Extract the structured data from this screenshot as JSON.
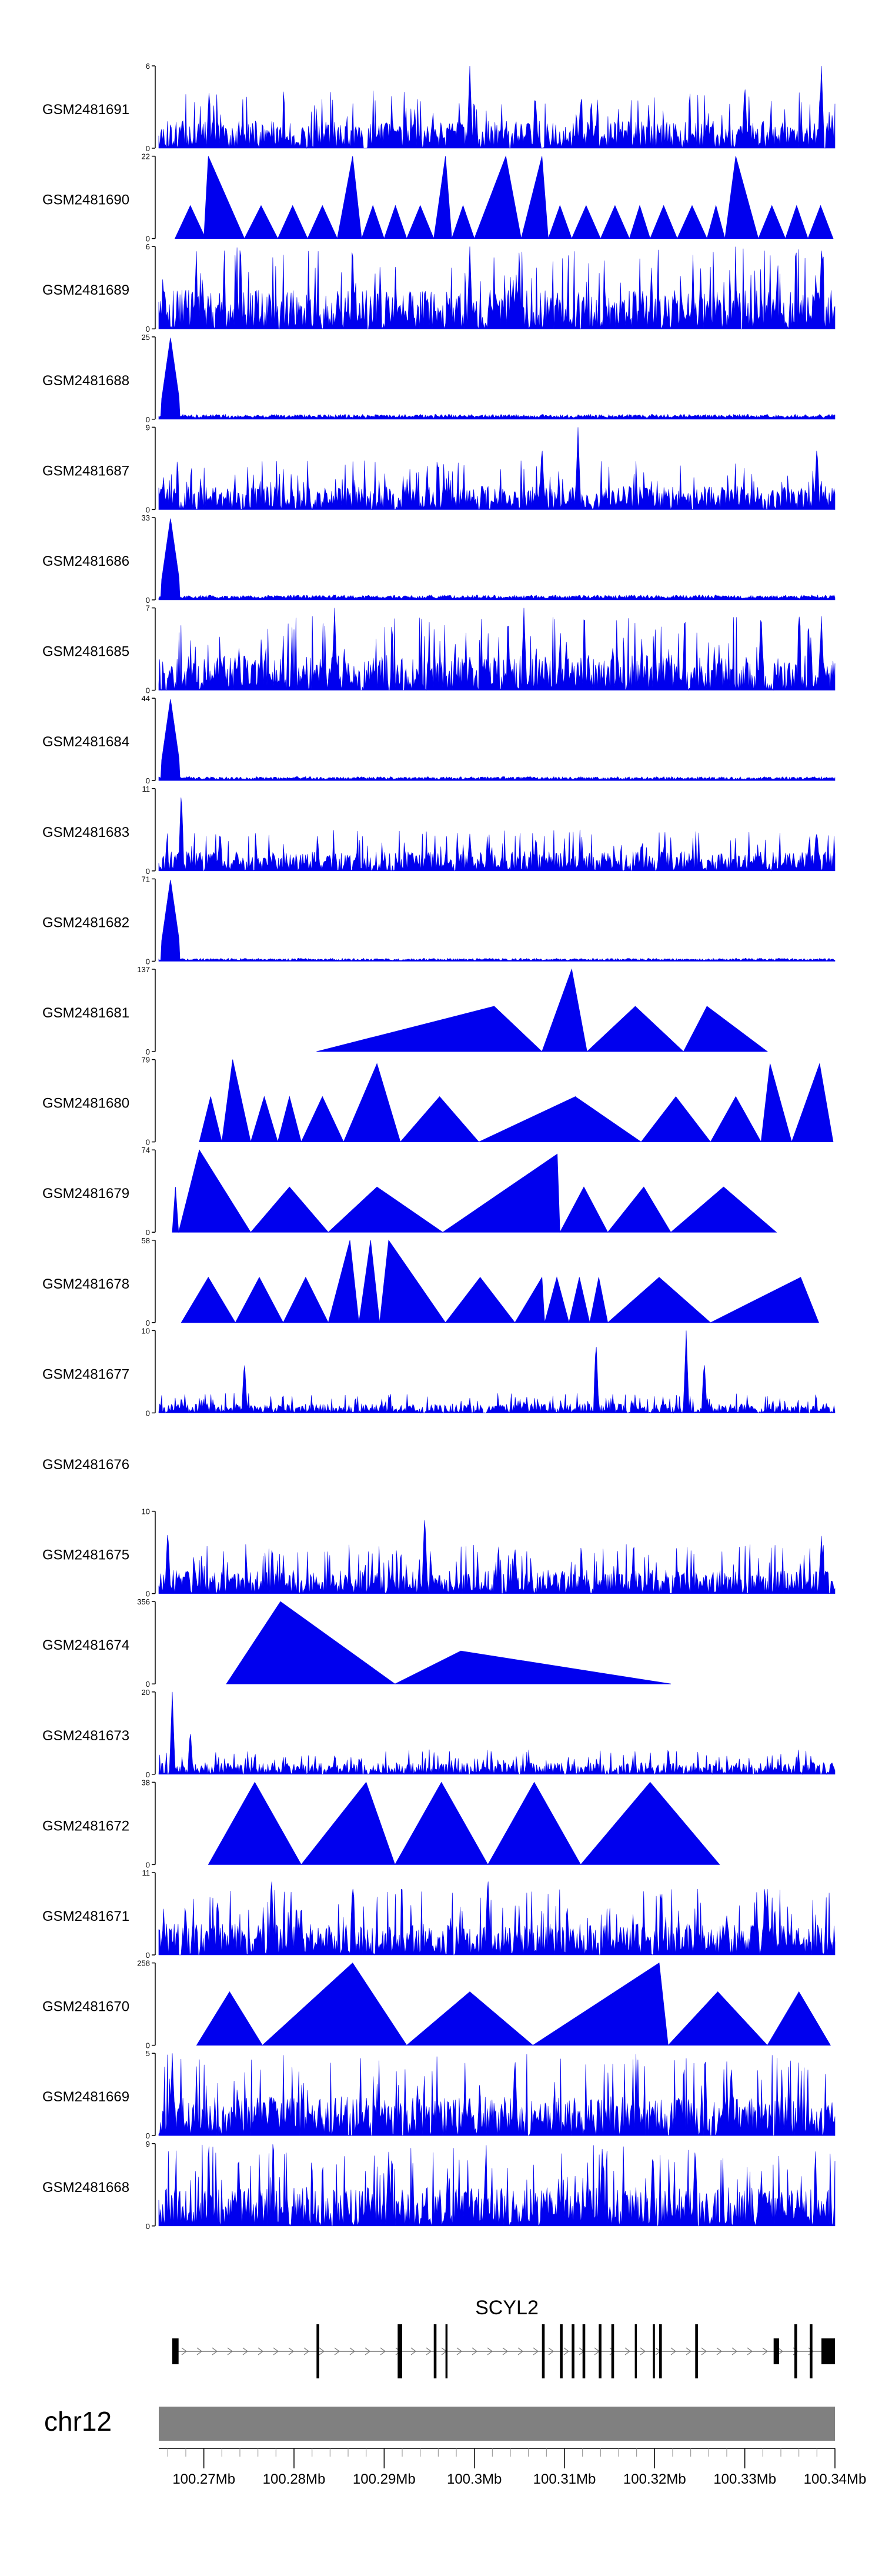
{
  "colors": {
    "fill": "#0000ee",
    "axis": "#000000",
    "gene": "#000000",
    "chrom": "#808080"
  },
  "chart_data": {
    "type": "area",
    "title": "",
    "xlabel": "",
    "ylabel": "",
    "xlim_mb": [
      100.265,
      100.34
    ],
    "tracks": [
      {
        "name": "GSM2481691",
        "ymax_label": "6",
        "ymin_label": "0",
        "style": "dense",
        "level": 0.35,
        "peaks": [
          [
            100.2995,
            1.0
          ],
          [
            100.33,
            0.8
          ],
          [
            100.3385,
            1.0
          ],
          [
            100.3118,
            0.6
          ]
        ],
        "empty": false
      },
      {
        "name": "GSM2481690",
        "ymax_label": "22",
        "ymin_label": "0",
        "style": "tri",
        "level": 0.4,
        "peaks": [
          [
            100.2705,
            1.0
          ],
          [
            100.2865,
            1.0
          ],
          [
            100.3035,
            1.0
          ],
          [
            100.329,
            1.0
          ],
          [
            100.2968,
            1.0
          ],
          [
            100.3075,
            1.0
          ]
        ],
        "empty": false
      },
      {
        "name": "GSM2481689",
        "ymax_label": "6",
        "ymin_label": "0",
        "style": "dense",
        "level": 0.5,
        "peaks": [
          [
            100.2995,
            1.0
          ],
          [
            100.3385,
            0.95
          ]
        ],
        "empty": false
      },
      {
        "name": "GSM2481688",
        "ymax_label": "25",
        "ymin_label": "0",
        "style": "edge",
        "level": 0.05,
        "peaks": [
          [
            100.2663,
            1.0
          ]
        ],
        "empty": false
      },
      {
        "name": "GSM2481687",
        "ymax_label": "9",
        "ymin_label": "0",
        "style": "dense",
        "level": 0.3,
        "peaks": [
          [
            100.3115,
            1.0
          ],
          [
            100.338,
            0.8
          ],
          [
            100.3075,
            0.8
          ]
        ],
        "empty": false
      },
      {
        "name": "GSM2481686",
        "ymax_label": "33",
        "ymin_label": "0",
        "style": "edge",
        "level": 0.05,
        "peaks": [
          [
            100.2663,
            1.0
          ]
        ],
        "empty": false
      },
      {
        "name": "GSM2481685",
        "ymax_label": "7",
        "ymin_label": "0",
        "style": "dense",
        "level": 0.45,
        "peaks": [
          [
            100.2845,
            1.0
          ],
          [
            100.3055,
            1.0
          ],
          [
            100.3318,
            1.0
          ],
          [
            100.3385,
            0.9
          ]
        ],
        "empty": false
      },
      {
        "name": "GSM2481684",
        "ymax_label": "44",
        "ymin_label": "0",
        "style": "edge",
        "level": 0.04,
        "peaks": [
          [
            100.2663,
            1.0
          ]
        ],
        "empty": false
      },
      {
        "name": "GSM2481683",
        "ymax_label": "11",
        "ymin_label": "0",
        "style": "dense",
        "level": 0.25,
        "peaks": [
          [
            100.2675,
            1.0
          ],
          [
            100.2718,
            0.5
          ],
          [
            100.2995,
            0.45
          ],
          [
            100.338,
            0.5
          ]
        ],
        "empty": false
      },
      {
        "name": "GSM2481682",
        "ymax_label": "71",
        "ymin_label": "0",
        "style": "edge",
        "level": 0.03,
        "peaks": [
          [
            100.2663,
            1.0
          ]
        ],
        "empty": false
      },
      {
        "name": "GSM2481681",
        "ymax_label": "137",
        "ymin_label": "0",
        "style": "tri",
        "level": 0.55,
        "peaks": [
          [
            100.3108,
            1.0
          ],
          [
            100.3258,
            0.45
          ],
          [
            100.3022,
            0.5
          ]
        ],
        "empty": false
      },
      {
        "name": "GSM2481680",
        "ymax_label": "79",
        "ymin_label": "0",
        "style": "tri",
        "level": 0.55,
        "peaks": [
          [
            100.2732,
            1.0
          ],
          [
            100.2892,
            0.95
          ],
          [
            100.3328,
            0.95
          ],
          [
            100.3383,
            0.95
          ],
          [
            100.3112,
            0.45
          ]
        ],
        "empty": false
      },
      {
        "name": "GSM2481679",
        "ymax_label": "74",
        "ymin_label": "0",
        "style": "tri",
        "level": 0.55,
        "peaks": [
          [
            100.2695,
            1.0
          ],
          [
            100.3092,
            0.95
          ],
          [
            100.2892,
            0.5
          ],
          [
            100.3188,
            0.5
          ]
        ],
        "empty": false
      },
      {
        "name": "GSM2481678",
        "ymax_label": "58",
        "ymin_label": "0",
        "style": "tri",
        "level": 0.55,
        "peaks": [
          [
            100.2862,
            1.0
          ],
          [
            100.2885,
            1.0
          ],
          [
            100.2905,
            1.0
          ],
          [
            100.3362,
            0.5
          ],
          [
            100.3075,
            0.5
          ]
        ],
        "empty": false
      },
      {
        "name": "GSM2481677",
        "ymax_label": "10",
        "ymin_label": "0",
        "style": "dense",
        "level": 0.12,
        "peaks": [
          [
            100.3235,
            1.0
          ],
          [
            100.3135,
            0.9
          ],
          [
            100.2745,
            0.65
          ],
          [
            100.3255,
            0.65
          ]
        ],
        "empty": false
      },
      {
        "name": "GSM2481676",
        "ymax_label": "",
        "ymin_label": "",
        "style": "none",
        "level": 0,
        "peaks": [],
        "empty": true
      },
      {
        "name": "GSM2481675",
        "ymax_label": "10",
        "ymin_label": "0",
        "style": "dense",
        "level": 0.3,
        "peaks": [
          [
            100.2945,
            1.0
          ],
          [
            100.266,
            0.8
          ],
          [
            100.3385,
            0.7
          ],
          [
            100.3045,
            0.6
          ]
        ],
        "empty": false
      },
      {
        "name": "GSM2481674",
        "ymax_label": "356",
        "ymin_label": "0",
        "style": "tri",
        "level": 0.4,
        "peaks": [
          [
            100.2785,
            1.0
          ],
          [
            100.2985,
            0.35
          ]
        ],
        "empty": false
      },
      {
        "name": "GSM2481673",
        "ymax_label": "20",
        "ymin_label": "0",
        "style": "dense",
        "level": 0.15,
        "peaks": [
          [
            100.2665,
            1.0
          ],
          [
            100.2685,
            0.55
          ]
        ],
        "empty": false
      },
      {
        "name": "GSM2481672",
        "ymax_label": "38",
        "ymin_label": "0",
        "style": "tri",
        "level": 1.0,
        "peaks": [
          [
            100.288,
            1.0
          ]
        ],
        "empty": false
      },
      {
        "name": "GSM2481671",
        "ymax_label": "11",
        "ymin_label": "0",
        "style": "dense",
        "level": 0.4,
        "peaks": [
          [
            100.2775,
            1.0
          ],
          [
            100.3015,
            1.0
          ],
          [
            100.2865,
            0.9
          ],
          [
            100.3325,
            0.8
          ]
        ],
        "empty": false
      },
      {
        "name": "GSM2481670",
        "ymax_label": "258",
        "ymin_label": "0",
        "style": "tri",
        "level": 0.65,
        "peaks": [
          [
            100.2865,
            1.0
          ],
          [
            100.3205,
            1.0
          ]
        ],
        "empty": false
      },
      {
        "name": "GSM2481669",
        "ymax_label": "5",
        "ymin_label": "0",
        "style": "dense",
        "level": 0.5,
        "peaks": [
          [
            100.3045,
            1.0
          ],
          [
            100.2665,
            1.0
          ],
          [
            100.3285,
            0.9
          ]
        ],
        "empty": false
      },
      {
        "name": "GSM2481668",
        "ymax_label": "9",
        "ymin_label": "0",
        "style": "dense",
        "level": 0.5,
        "peaks": [
          [
            100.3245,
            1.0
          ],
          [
            100.3142,
            1.0
          ],
          [
            100.3198,
            0.95
          ],
          [
            100.2905,
            0.9
          ]
        ],
        "empty": false
      }
    ],
    "tri_spans": [
      [],
      [
        [
          100.2668,
          100.2702
        ],
        [
          100.27,
          100.2745
        ],
        [
          100.2745,
          100.2782
        ],
        [
          100.2782,
          100.2815
        ],
        [
          100.2815,
          100.2848
        ],
        [
          100.2848,
          100.2875
        ],
        [
          100.2875,
          100.29
        ],
        [
          100.29,
          100.2925
        ],
        [
          100.2925,
          100.2955
        ],
        [
          100.2955,
          100.2975
        ],
        [
          100.2975,
          100.3
        ],
        [
          100.3,
          100.3052
        ],
        [
          100.3052,
          100.3082
        ],
        [
          100.3082,
          100.3108
        ],
        [
          100.3108,
          100.314
        ],
        [
          100.314,
          100.3172
        ],
        [
          100.3172,
          100.3195
        ],
        [
          100.3195,
          100.3225
        ],
        [
          100.3225,
          100.3258
        ],
        [
          100.3258,
          100.3278
        ],
        [
          100.3278,
          100.3315
        ],
        [
          100.3315,
          100.3345
        ],
        [
          100.3345,
          100.337
        ],
        [
          100.337,
          100.3398
        ]
      ],
      [],
      [],
      [],
      [],
      [],
      [],
      [],
      [],
      [
        [
          100.2825,
          100.3075
        ],
        [
          100.3075,
          100.3125
        ],
        [
          100.3125,
          100.3232
        ],
        [
          100.3232,
          100.3325
        ]
      ],
      [
        [
          100.2695,
          100.272
        ],
        [
          100.272,
          100.2752
        ],
        [
          100.2752,
          100.2782
        ],
        [
          100.2782,
          100.2808
        ],
        [
          100.2808,
          100.2855
        ],
        [
          100.2855,
          100.2918
        ],
        [
          100.2918,
          100.3005
        ],
        [
          100.3005,
          100.3112
        ],
        [
          100.3112,
          100.3185
        ],
        [
          100.3185,
          100.3262
        ],
        [
          100.3262,
          100.3318
        ],
        [
          100.3318,
          100.3352
        ],
        [
          100.3352,
          100.3398
        ]
      ],
      [
        [
          100.2665,
          100.2672
        ],
        [
          100.2672,
          100.2752
        ],
        [
          100.2752,
          100.2838
        ],
        [
          100.2838,
          100.2965
        ],
        [
          100.2965,
          100.3095
        ],
        [
          100.3095,
          100.3148
        ],
        [
          100.3148,
          100.3218
        ],
        [
          100.3218,
          100.3335
        ]
      ],
      [
        [
          100.2675,
          100.2735
        ],
        [
          100.2735,
          100.2788
        ],
        [
          100.2788,
          100.2838
        ],
        [
          100.2838,
          100.2872
        ],
        [
          100.2872,
          100.2895
        ],
        [
          100.2895,
          100.2968
        ],
        [
          100.2968,
          100.3045
        ],
        [
          100.3045,
          100.3078
        ],
        [
          100.3078,
          100.3105
        ],
        [
          100.3105,
          100.3128
        ],
        [
          100.3128,
          100.3148
        ],
        [
          100.3148,
          100.3262
        ],
        [
          100.3262,
          100.3382
        ]
      ],
      [],
      [],
      [],
      [
        [
          100.2725,
          100.2912
        ],
        [
          100.2912,
          100.3218
        ]
      ],
      [],
      [
        [
          100.2705,
          100.2808
        ],
        [
          100.2808,
          100.2912
        ],
        [
          100.2912,
          100.3015
        ],
        [
          100.3015,
          100.3118
        ],
        [
          100.3118,
          100.3272
        ]
      ],
      [],
      [
        [
          100.2692,
          100.2765
        ],
        [
          100.2765,
          100.2925
        ],
        [
          100.2925,
          100.3065
        ],
        [
          100.3065,
          100.3215
        ],
        [
          100.3215,
          100.3325
        ],
        [
          100.3325,
          100.3395
        ]
      ],
      [],
      []
    ],
    "gene_track": {
      "gene": "SCYL2",
      "start": 100.2665,
      "end": 100.34,
      "exons": [
        [
          100.2665,
          100.2672
        ],
        [
          100.2825,
          100.2828
        ],
        [
          100.2915,
          100.292
        ],
        [
          100.2955,
          100.2958
        ],
        [
          100.2968,
          100.297
        ],
        [
          100.3075,
          100.3078
        ],
        [
          100.3095,
          100.3098
        ],
        [
          100.3108,
          100.3111
        ],
        [
          100.312,
          100.3123
        ],
        [
          100.3138,
          100.3141
        ],
        [
          100.3152,
          100.3155
        ],
        [
          100.3178,
          100.318
        ],
        [
          100.3198,
          100.32
        ],
        [
          100.3205,
          100.3208
        ],
        [
          100.3245,
          100.3248
        ],
        [
          100.3332,
          100.3338
        ],
        [
          100.3355,
          100.3358
        ],
        [
          100.3372,
          100.3375
        ],
        [
          100.3385,
          100.34
        ]
      ]
    },
    "chromosome": {
      "name": "chr12"
    },
    "x_axis": {
      "ticks": [
        "100.27Mb",
        "100.28Mb",
        "100.29Mb",
        "100.3Mb",
        "100.31Mb",
        "100.32Mb",
        "100.33Mb",
        "100.34Mb"
      ],
      "tick_values": [
        100.27,
        100.28,
        100.29,
        100.3,
        100.31,
        100.32,
        100.33,
        100.34
      ]
    }
  }
}
